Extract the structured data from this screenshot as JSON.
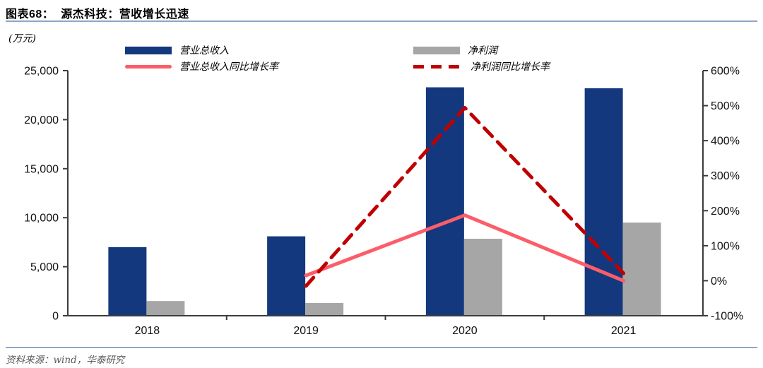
{
  "header": {
    "title": "图表68：  源杰科技：营收增长迅速"
  },
  "footer": {
    "source": "资料来源：wind，华泰研究"
  },
  "colors": {
    "bar_revenue": "#14387D",
    "bar_net_profit": "#A6A6A6",
    "line_revenue_yoy": "#FC5D69",
    "line_profit_yoy": "#C00000",
    "rule_blue": "#8CA7C6",
    "axis": "#3C3C3C",
    "source_text": "#595959"
  },
  "chart_data": {
    "type": "bar+line",
    "categories": [
      "2018",
      "2019",
      "2020",
      "2021"
    ],
    "bar_series": [
      {
        "key": "revenue",
        "name": "营业总收入",
        "color": "#14387D",
        "axis": "left",
        "values": [
          7000,
          8100,
          23300,
          23200
        ]
      },
      {
        "key": "net-profit",
        "name": "净利润",
        "color": "#A6A6A6",
        "axis": "left",
        "values": [
          1500,
          1300,
          7850,
          9500
        ]
      }
    ],
    "line_series": [
      {
        "key": "revenue-yoy",
        "name": "营业总收入同比增长率",
        "color": "#FC5D69",
        "style": "solid",
        "axis": "right",
        "values": [
          null,
          15,
          187,
          0
        ]
      },
      {
        "key": "profit-yoy",
        "name": "净利润同比增长率",
        "color": "#C00000",
        "style": "dashed",
        "axis": "right",
        "values": [
          null,
          -15,
          494,
          21
        ]
      }
    ],
    "left_axis": {
      "title": "(万元)",
      "min": 0,
      "max": 25000,
      "ticks": [
        0,
        5000,
        10000,
        15000,
        20000,
        25000
      ],
      "tick_labels": [
        "0",
        "5,000",
        "10,000",
        "15,000",
        "20,000",
        "25,000"
      ]
    },
    "right_axis": {
      "min": -100,
      "max": 600,
      "ticks": [
        -100,
        0,
        100,
        200,
        300,
        400,
        500,
        600
      ],
      "tick_labels": [
        "-100%",
        "0%",
        "100%",
        "200%",
        "300%",
        "400%",
        "500%",
        "600%"
      ]
    },
    "grid": false,
    "legend_position": "top"
  }
}
